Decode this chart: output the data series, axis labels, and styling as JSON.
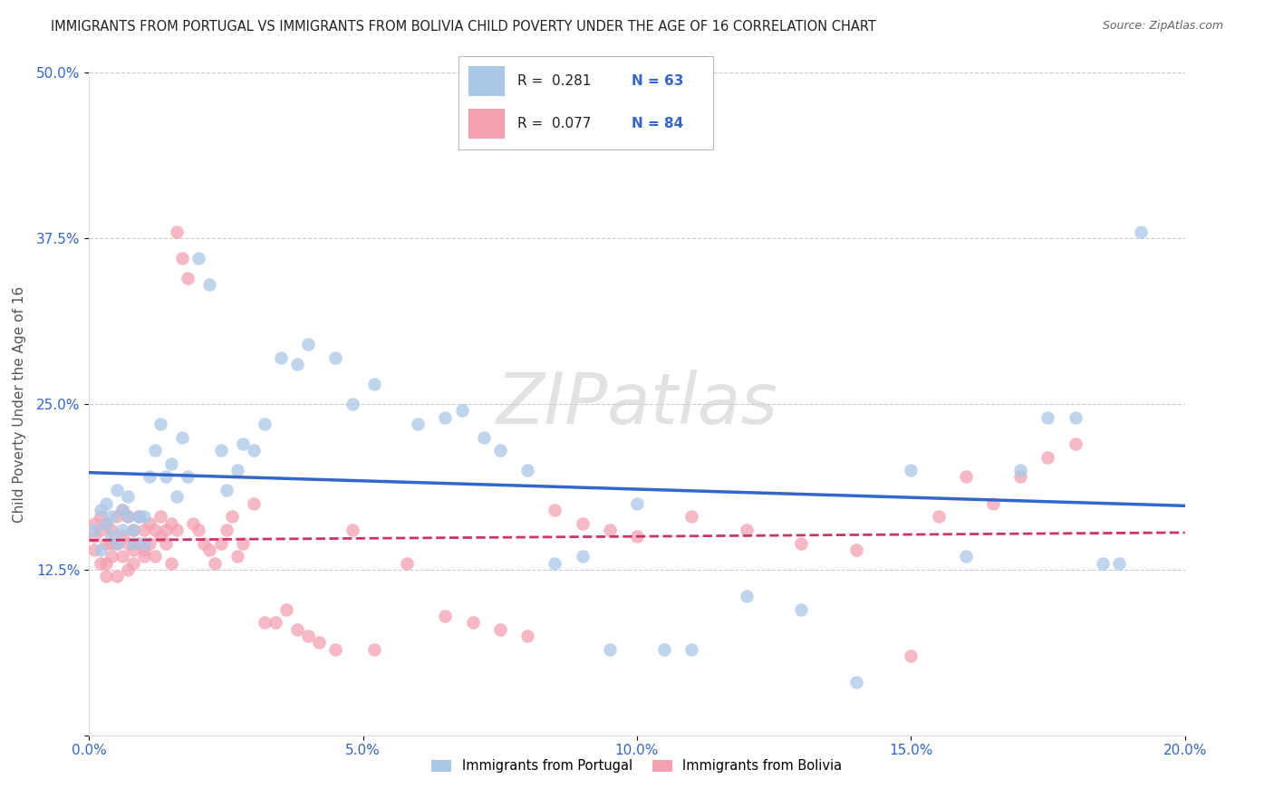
{
  "title": "IMMIGRANTS FROM PORTUGAL VS IMMIGRANTS FROM BOLIVIA CHILD POVERTY UNDER THE AGE OF 16 CORRELATION CHART",
  "source": "Source: ZipAtlas.com",
  "ylabel": "Child Poverty Under the Age of 16",
  "legend_label1": "Immigrants from Portugal",
  "legend_label2": "Immigrants from Bolivia",
  "R1": 0.281,
  "N1": 63,
  "R2": 0.077,
  "N2": 84,
  "xlim": [
    0,
    0.2
  ],
  "ylim": [
    0,
    0.5
  ],
  "xticks": [
    0.0,
    0.05,
    0.1,
    0.15,
    0.2
  ],
  "yticks": [
    0.0,
    0.125,
    0.25,
    0.375,
    0.5
  ],
  "xtick_labels": [
    "0.0%",
    "5.0%",
    "10.0%",
    "15.0%",
    "20.0%"
  ],
  "ytick_labels": [
    "",
    "12.5%",
    "25.0%",
    "37.5%",
    "50.0%"
  ],
  "color1": "#a8c8e8",
  "color2": "#f4a0b0",
  "trendline1_color": "#3366cc",
  "trendline2_color": "#cc3366",
  "background_color": "#ffffff",
  "grid_color": "#cccccc",
  "watermark": "ZIPatlas",
  "portugal_x": [
    0.001,
    0.002,
    0.002,
    0.003,
    0.003,
    0.004,
    0.004,
    0.005,
    0.005,
    0.006,
    0.006,
    0.007,
    0.007,
    0.008,
    0.008,
    0.009,
    0.01,
    0.01,
    0.011,
    0.012,
    0.013,
    0.014,
    0.015,
    0.016,
    0.017,
    0.018,
    0.02,
    0.022,
    0.024,
    0.025,
    0.027,
    0.028,
    0.03,
    0.032,
    0.035,
    0.038,
    0.04,
    0.045,
    0.048,
    0.052,
    0.06,
    0.065,
    0.068,
    0.072,
    0.075,
    0.08,
    0.085,
    0.09,
    0.095,
    0.1,
    0.105,
    0.11,
    0.12,
    0.13,
    0.14,
    0.15,
    0.16,
    0.17,
    0.175,
    0.18,
    0.185,
    0.188,
    0.192
  ],
  "portugal_y": [
    0.155,
    0.14,
    0.17,
    0.16,
    0.175,
    0.15,
    0.165,
    0.145,
    0.185,
    0.155,
    0.17,
    0.165,
    0.18,
    0.145,
    0.155,
    0.165,
    0.165,
    0.145,
    0.195,
    0.215,
    0.235,
    0.195,
    0.205,
    0.18,
    0.225,
    0.195,
    0.36,
    0.34,
    0.215,
    0.185,
    0.2,
    0.22,
    0.215,
    0.235,
    0.285,
    0.28,
    0.295,
    0.285,
    0.25,
    0.265,
    0.235,
    0.24,
    0.245,
    0.225,
    0.215,
    0.2,
    0.13,
    0.135,
    0.065,
    0.175,
    0.065,
    0.065,
    0.105,
    0.095,
    0.04,
    0.2,
    0.135,
    0.2,
    0.24,
    0.24,
    0.13,
    0.13,
    0.38
  ],
  "bolivia_x": [
    0.001,
    0.001,
    0.001,
    0.002,
    0.002,
    0.002,
    0.003,
    0.003,
    0.003,
    0.003,
    0.004,
    0.004,
    0.004,
    0.005,
    0.005,
    0.005,
    0.006,
    0.006,
    0.006,
    0.007,
    0.007,
    0.007,
    0.008,
    0.008,
    0.008,
    0.009,
    0.009,
    0.01,
    0.01,
    0.01,
    0.011,
    0.011,
    0.012,
    0.012,
    0.013,
    0.013,
    0.014,
    0.014,
    0.015,
    0.015,
    0.016,
    0.016,
    0.017,
    0.018,
    0.019,
    0.02,
    0.021,
    0.022,
    0.023,
    0.024,
    0.025,
    0.026,
    0.027,
    0.028,
    0.03,
    0.032,
    0.034,
    0.036,
    0.038,
    0.04,
    0.042,
    0.045,
    0.048,
    0.052,
    0.058,
    0.065,
    0.07,
    0.075,
    0.08,
    0.085,
    0.09,
    0.095,
    0.1,
    0.11,
    0.12,
    0.13,
    0.14,
    0.15,
    0.155,
    0.16,
    0.165,
    0.17,
    0.175,
    0.18
  ],
  "bolivia_y": [
    0.15,
    0.16,
    0.14,
    0.155,
    0.165,
    0.13,
    0.145,
    0.16,
    0.13,
    0.12,
    0.145,
    0.135,
    0.155,
    0.165,
    0.145,
    0.12,
    0.15,
    0.17,
    0.135,
    0.145,
    0.165,
    0.125,
    0.155,
    0.14,
    0.13,
    0.145,
    0.165,
    0.155,
    0.14,
    0.135,
    0.145,
    0.16,
    0.155,
    0.135,
    0.15,
    0.165,
    0.155,
    0.145,
    0.16,
    0.13,
    0.155,
    0.38,
    0.36,
    0.345,
    0.16,
    0.155,
    0.145,
    0.14,
    0.13,
    0.145,
    0.155,
    0.165,
    0.135,
    0.145,
    0.175,
    0.085,
    0.085,
    0.095,
    0.08,
    0.075,
    0.07,
    0.065,
    0.155,
    0.065,
    0.13,
    0.09,
    0.085,
    0.08,
    0.075,
    0.17,
    0.16,
    0.155,
    0.15,
    0.165,
    0.155,
    0.145,
    0.14,
    0.06,
    0.165,
    0.195,
    0.175,
    0.195,
    0.21,
    0.22
  ]
}
